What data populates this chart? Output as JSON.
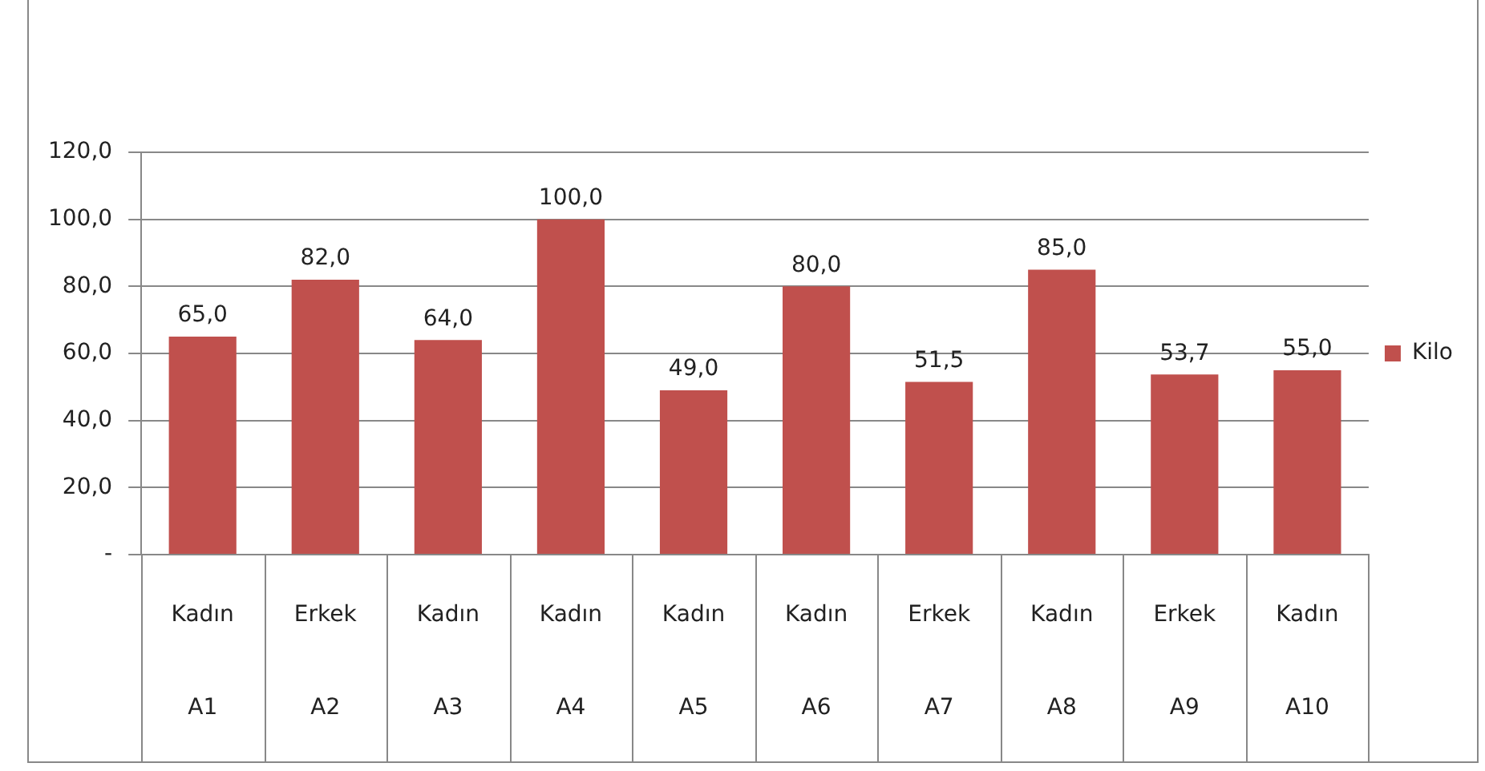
{
  "chart_data": {
    "type": "bar",
    "categories": [
      "Kadın\nA1",
      "Erkek\nA2",
      "Kadın\nA3",
      "Kadın\nA4",
      "Kadın\nA5",
      "Kadın\nA6",
      "Erkek\nA7",
      "Kadın\nA8",
      "Erkek\nA9",
      "Kadın\nA10"
    ],
    "series": [
      {
        "name": "Kilo",
        "color": "#c0504d",
        "values": [
          65.0,
          82.0,
          64.0,
          100.0,
          49.0,
          80.0,
          51.5,
          85.0,
          53.7,
          55.0
        ],
        "value_labels": [
          "65,0",
          "82,0",
          "64,0",
          "100,0",
          "49,0",
          "80,0",
          "51,5",
          "85,0",
          "53,7",
          "55,0"
        ]
      }
    ],
    "ylim": [
      0,
      120
    ],
    "yticks": [
      {
        "value": 0,
        "label": "-"
      },
      {
        "value": 20,
        "label": "20,0"
      },
      {
        "value": 40,
        "label": "40,0"
      },
      {
        "value": 60,
        "label": "60,0"
      },
      {
        "value": 80,
        "label": "80,0"
      },
      {
        "value": 100,
        "label": "100,0"
      },
      {
        "value": 120,
        "label": "120,0"
      }
    ],
    "grid": "y",
    "legend": "right"
  }
}
